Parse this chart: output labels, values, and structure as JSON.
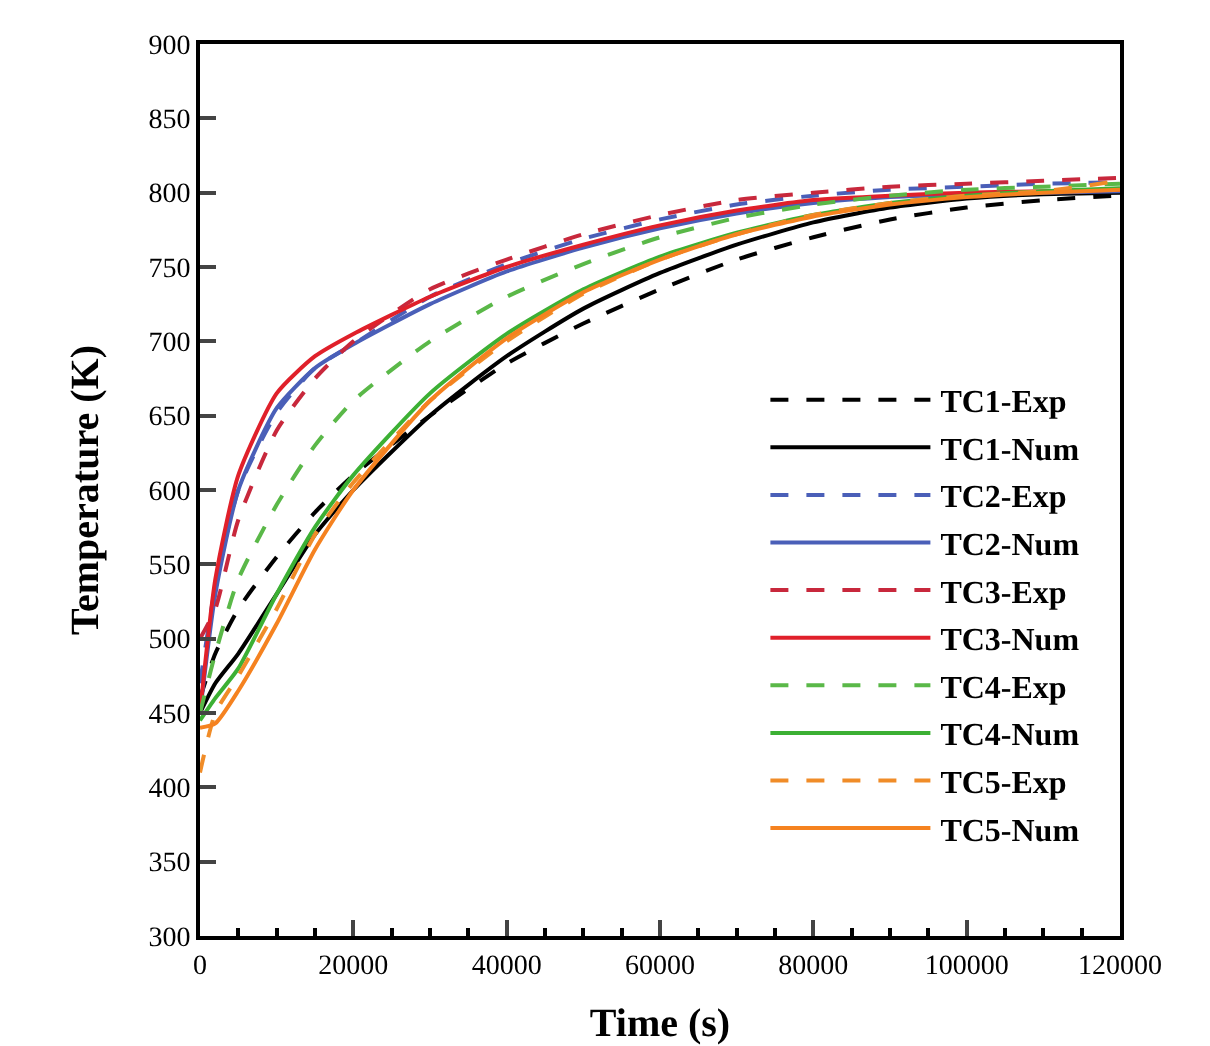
{
  "chart_data": {
    "type": "line",
    "xlabel": "Time (s)",
    "ylabel": "Temperature (K)",
    "x": [
      0,
      2000,
      5000,
      10000,
      15000,
      20000,
      30000,
      40000,
      50000,
      60000,
      70000,
      80000,
      90000,
      100000,
      110000,
      120000
    ],
    "xlim": [
      0,
      120000
    ],
    "xticks": [
      0,
      20000,
      40000,
      60000,
      80000,
      100000,
      120000
    ],
    "ylim": [
      300,
      900
    ],
    "yticks": [
      300,
      350,
      400,
      450,
      500,
      550,
      600,
      650,
      700,
      750,
      800,
      850,
      900
    ],
    "grid": false,
    "legend": "right",
    "marker": "none",
    "series": [
      {
        "name": "TC1-Exp",
        "color": "#000000",
        "line_style": "dashed",
        "values": [
          460,
          490,
          520,
          555,
          585,
          610,
          650,
          685,
          712,
          735,
          755,
          770,
          782,
          790,
          795,
          798
        ]
      },
      {
        "name": "TC1-Num",
        "color": "#000000",
        "line_style": "solid",
        "values": [
          450,
          470,
          490,
          530,
          570,
          600,
          650,
          690,
          722,
          746,
          765,
          780,
          790,
          796,
          799,
          800
        ]
      },
      {
        "name": "TC2-Exp",
        "color": "#4a5fb8",
        "line_style": "dashed",
        "values": [
          470,
          535,
          600,
          652,
          682,
          698,
          730,
          752,
          769,
          782,
          792,
          798,
          802,
          804,
          806,
          807
        ]
      },
      {
        "name": "TC2-Num",
        "color": "#4a5fb8",
        "line_style": "solid",
        "values": [
          450,
          530,
          600,
          655,
          682,
          698,
          725,
          747,
          763,
          776,
          786,
          793,
          797,
          799,
          800,
          801
        ]
      },
      {
        "name": "TC3-Exp",
        "color": "#c8283c",
        "line_style": "dashed",
        "values": [
          500,
          520,
          580,
          640,
          675,
          700,
          735,
          755,
          772,
          785,
          795,
          800,
          804,
          806,
          808,
          810
        ]
      },
      {
        "name": "TC3-Num",
        "color": "#e0202a",
        "line_style": "solid",
        "values": [
          450,
          540,
          610,
          665,
          690,
          705,
          730,
          750,
          765,
          778,
          788,
          795,
          798,
          800,
          801,
          802
        ]
      },
      {
        "name": "TC4-Exp",
        "color": "#5ab848",
        "line_style": "dashed",
        "values": [
          450,
          490,
          540,
          590,
          630,
          660,
          700,
          730,
          752,
          770,
          783,
          792,
          798,
          802,
          804,
          806
        ]
      },
      {
        "name": "TC4-Num",
        "color": "#3cb034",
        "line_style": "solid",
        "values": [
          445,
          460,
          480,
          530,
          575,
          610,
          665,
          705,
          735,
          757,
          773,
          785,
          793,
          798,
          801,
          803
        ]
      },
      {
        "name": "TC5-Exp",
        "color": "#f08c28",
        "line_style": "dashed",
        "values": [
          410,
          450,
          475,
          520,
          570,
          605,
          660,
          700,
          732,
          755,
          772,
          785,
          793,
          798,
          801,
          808
        ]
      },
      {
        "name": "TC5-Num",
        "color": "#f58220",
        "line_style": "solid",
        "values": [
          440,
          443,
          465,
          510,
          560,
          600,
          660,
          702,
          733,
          755,
          772,
          784,
          792,
          797,
          800,
          802
        ]
      }
    ]
  }
}
